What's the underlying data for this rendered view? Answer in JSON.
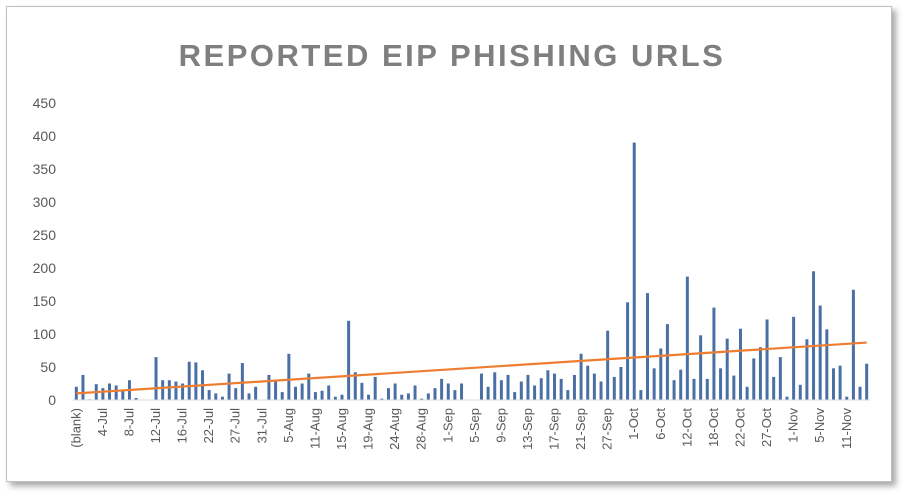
{
  "chart_data": {
    "type": "bar",
    "title": "REPORTED EIP PHISHING URLS",
    "xlabel": "",
    "ylabel": "",
    "ylim": [
      0,
      450
    ],
    "yticks": [
      0,
      50,
      100,
      150,
      200,
      250,
      300,
      350,
      400,
      450
    ],
    "grid": false,
    "legend": "none",
    "x_tick_labels": [
      {
        "index": 0,
        "label": "(blank)"
      },
      {
        "index": 4,
        "label": "4-Jul"
      },
      {
        "index": 8,
        "label": "8-Jul"
      },
      {
        "index": 12,
        "label": "12-Jul"
      },
      {
        "index": 16,
        "label": "16-Jul"
      },
      {
        "index": 20,
        "label": "22-Jul"
      },
      {
        "index": 24,
        "label": "27-Jul"
      },
      {
        "index": 28,
        "label": "31-Jul"
      },
      {
        "index": 32,
        "label": "5-Aug"
      },
      {
        "index": 36,
        "label": "11-Aug"
      },
      {
        "index": 40,
        "label": "15-Aug"
      },
      {
        "index": 44,
        "label": "19-Aug"
      },
      {
        "index": 48,
        "label": "24-Aug"
      },
      {
        "index": 52,
        "label": "28-Aug"
      },
      {
        "index": 56,
        "label": "1-Sep"
      },
      {
        "index": 60,
        "label": "5-Sep"
      },
      {
        "index": 64,
        "label": "9-Sep"
      },
      {
        "index": 68,
        "label": "13-Sep"
      },
      {
        "index": 72,
        "label": "17-Sep"
      },
      {
        "index": 76,
        "label": "21-Sep"
      },
      {
        "index": 80,
        "label": "27-Sep"
      },
      {
        "index": 84,
        "label": "1-Oct"
      },
      {
        "index": 88,
        "label": "6-Oct"
      },
      {
        "index": 92,
        "label": "12-Oct"
      },
      {
        "index": 96,
        "label": "18-Oct"
      },
      {
        "index": 100,
        "label": "22-Oct"
      },
      {
        "index": 104,
        "label": "27-Oct"
      },
      {
        "index": 108,
        "label": "1-Nov"
      },
      {
        "index": 112,
        "label": "5-Nov"
      },
      {
        "index": 116,
        "label": "11-Nov"
      }
    ],
    "values": [
      20,
      38,
      1,
      24,
      18,
      25,
      22,
      14,
      30,
      3,
      0,
      0,
      65,
      30,
      30,
      28,
      25,
      58,
      57,
      45,
      15,
      10,
      5,
      40,
      18,
      56,
      10,
      20,
      0,
      38,
      30,
      12,
      70,
      20,
      25,
      40,
      12,
      14,
      22,
      5,
      8,
      120,
      42,
      26,
      8,
      35,
      2,
      18,
      25,
      8,
      10,
      22,
      2,
      10,
      18,
      32,
      25,
      15,
      25,
      0,
      0,
      40,
      20,
      42,
      30,
      38,
      12,
      28,
      38,
      22,
      33,
      45,
      40,
      32,
      15,
      38,
      70,
      52,
      40,
      28,
      105,
      35,
      50,
      148,
      390,
      15,
      162,
      48,
      78,
      115,
      30,
      46,
      187,
      32,
      98,
      32,
      140,
      48,
      93,
      37,
      108,
      20,
      63,
      80,
      122,
      35,
      65,
      5,
      126,
      23,
      92,
      195,
      143,
      107,
      48,
      52,
      5,
      167,
      20,
      55
    ],
    "bar_color": "#4a6fa5",
    "trendline": {
      "type": "linear",
      "color": "#ed7d31",
      "start_value": 10,
      "end_value": 87
    }
  }
}
